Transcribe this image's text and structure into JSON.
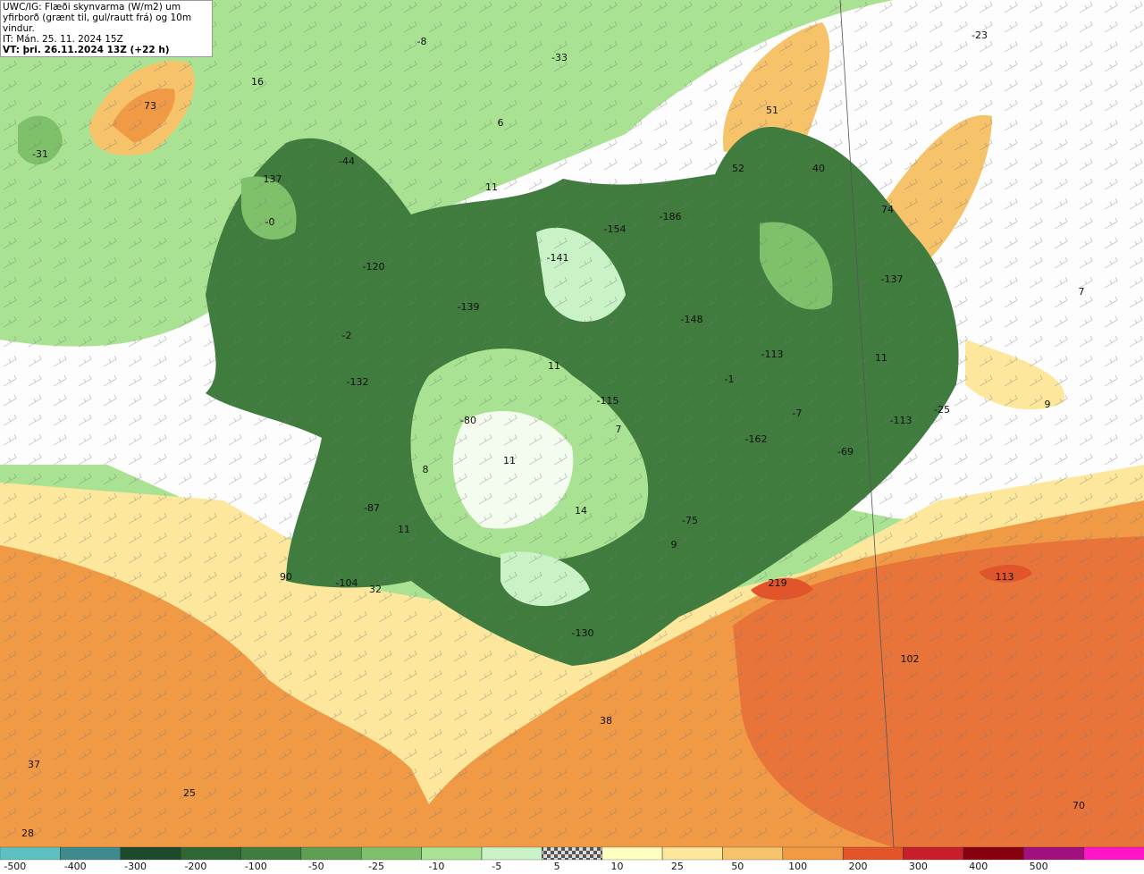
{
  "header": {
    "lines": [
      "UWC/IG: Flæði skynvarma (W/m2) um",
      "yfirborð (grænt til, gul/rautt frá) og 10m vindur.",
      "IT: Mán. 25. 11. 2024 15Z",
      "VT: þri. 26.11.2024 13Z (+22 h)"
    ]
  },
  "map": {
    "labels": [
      "73",
      "16",
      "-31",
      "-8",
      "-33",
      "-23",
      "6",
      "51",
      "52",
      "40",
      "74",
      "11",
      "-44",
      "137",
      "-0",
      "-186",
      "-154",
      "-141",
      "-120",
      "-137",
      "7",
      "-139",
      "-148",
      "-2",
      "-113",
      "11",
      "11",
      "-1",
      "-132",
      "-115",
      "9",
      "-7",
      "-25",
      "-113",
      "-80",
      "7",
      "-162",
      "-69",
      "8",
      "11",
      "-87",
      "14",
      "-75",
      "11",
      "9",
      "90",
      "-104",
      "32",
      "219",
      "113",
      "-130",
      "102",
      "38",
      "37",
      "25",
      "70",
      "28"
    ]
  },
  "colorbar": {
    "ticks": [
      -500,
      -400,
      -300,
      -200,
      -100,
      -50,
      -25,
      -10,
      -5,
      5,
      10,
      25,
      50,
      100,
      200,
      300,
      400,
      500
    ],
    "colors": [
      "#5fc0c0",
      "#3f8a8c",
      "#1c4a2a",
      "#2f6634",
      "#3f7c3e",
      "#5e9f52",
      "#7fc06a",
      "#a9e292",
      "#c9f2c6",
      "checker",
      "#ffffc2",
      "#fce79c",
      "#f6c36a",
      "#f09a46",
      "#e2542a",
      "#c61f2a",
      "#870010",
      "#a0107e",
      "#ff14c8"
    ]
  }
}
